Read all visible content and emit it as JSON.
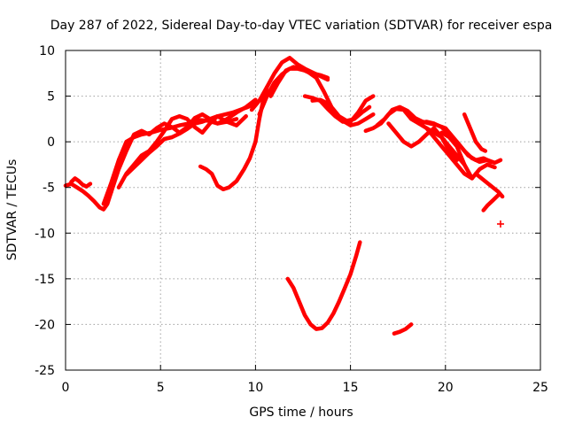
{
  "chart_data": {
    "type": "scatter",
    "title": "Day 287 of 2022, Sidereal Day-to-day VTEC variation (SDTVAR) for receiver espa",
    "xlabel": "GPS time / hours",
    "ylabel": "SDTVAR / TECUs",
    "xlim": [
      0,
      25
    ],
    "ylim": [
      -25,
      10
    ],
    "xticks": [
      0,
      5,
      10,
      15,
      20,
      25
    ],
    "yticks": [
      -25,
      -20,
      -15,
      -10,
      -5,
      0,
      5,
      10
    ],
    "xtick_labels": [
      "0",
      "5",
      "10",
      "15",
      "20",
      "25"
    ],
    "ytick_labels": [
      "-25",
      "-20",
      "-15",
      "-10",
      "-5",
      "0",
      "5",
      "10"
    ],
    "grid": true,
    "color": "#ff0000",
    "series": [
      {
        "name": "arc-early-low",
        "x": [
          0.0,
          0.3,
          0.6,
          0.9,
          1.2,
          1.5,
          1.8,
          2.0,
          2.2,
          2.4
        ],
        "y": [
          -4.8,
          -4.6,
          -5.0,
          -5.4,
          -5.9,
          -6.5,
          -7.2,
          -7.4,
          -6.8,
          -5.5
        ]
      },
      {
        "name": "arc-early-bump",
        "x": [
          0.3,
          0.5,
          0.7,
          0.9,
          1.1,
          1.3
        ],
        "y": [
          -4.4,
          -4.0,
          -4.3,
          -4.7,
          -4.9,
          -4.6
        ]
      },
      {
        "name": "arc-rise-a",
        "x": [
          2.0,
          2.4,
          2.8,
          3.2,
          3.6,
          4.0,
          4.5,
          5.0,
          5.5,
          6.0,
          6.5,
          7.0,
          7.5,
          8.0,
          8.5,
          9.0
        ],
        "y": [
          -6.8,
          -4.5,
          -2.0,
          0.0,
          0.5,
          0.8,
          1.0,
          1.3,
          1.5,
          1.8,
          2.0,
          2.4,
          2.3,
          2.0,
          2.2,
          2.5
        ]
      },
      {
        "name": "arc-rise-b",
        "x": [
          2.4,
          2.8,
          3.2,
          3.6,
          4.0,
          4.4,
          4.8,
          5.2,
          5.6,
          6.0,
          6.4,
          6.8,
          7.2,
          7.6,
          8.0,
          8.5,
          9.0,
          9.5,
          10.0
        ],
        "y": [
          -5.5,
          -3.0,
          -1.0,
          0.8,
          1.2,
          0.8,
          1.5,
          2.0,
          1.6,
          1.0,
          1.6,
          2.6,
          3.0,
          2.5,
          2.0,
          2.5,
          3.2,
          3.8,
          4.6
        ]
      },
      {
        "name": "arc-rise-c",
        "x": [
          2.8,
          3.2,
          3.6,
          4.0,
          4.4,
          4.8,
          5.2,
          5.6,
          6.0,
          6.4,
          6.8,
          7.2,
          7.6,
          8.0,
          8.5,
          9.0,
          9.5
        ],
        "y": [
          -5.0,
          -3.5,
          -2.5,
          -1.5,
          -1.0,
          0.0,
          1.2,
          2.5,
          2.8,
          2.5,
          1.6,
          1.0,
          2.0,
          2.8,
          2.2,
          1.8,
          2.8
        ]
      },
      {
        "name": "arc-rise-d",
        "x": [
          3.2,
          3.6,
          4.0,
          4.4,
          4.8,
          5.2,
          5.6,
          6.0,
          6.4,
          6.8,
          7.2,
          7.6,
          8.0,
          8.4,
          8.8,
          9.2,
          9.6,
          10.0
        ],
        "y": [
          -3.6,
          -2.8,
          -2.0,
          -1.2,
          -0.5,
          0.3,
          0.5,
          0.9,
          1.4,
          2.0,
          2.2,
          2.5,
          2.8,
          3.0,
          3.2,
          3.5,
          3.8,
          4.2
        ]
      },
      {
        "name": "arc-dip-mid",
        "x": [
          7.1,
          7.4,
          7.7,
          8.0,
          8.3,
          8.6,
          9.0,
          9.4,
          9.7,
          10.0,
          10.2,
          10.4,
          10.6
        ],
        "y": [
          -2.7,
          -3.0,
          -3.5,
          -4.8,
          -5.2,
          -5.0,
          -4.3,
          -3.0,
          -1.8,
          0.0,
          2.5,
          4.5,
          6.0
        ]
      },
      {
        "name": "arc-peak-a",
        "x": [
          9.8,
          10.2,
          10.6,
          11.0,
          11.4,
          11.8,
          12.2,
          12.6,
          13.0,
          13.4,
          13.8
        ],
        "y": [
          3.5,
          4.5,
          6.0,
          7.5,
          8.7,
          9.2,
          8.5,
          8.0,
          7.6,
          7.2,
          6.8
        ]
      },
      {
        "name": "arc-peak-b",
        "x": [
          10.2,
          10.6,
          11.0,
          11.4,
          11.8,
          12.2,
          12.6,
          13.0,
          13.4,
          13.8
        ],
        "y": [
          3.0,
          5.0,
          6.5,
          7.4,
          8.0,
          8.0,
          7.8,
          7.5,
          7.3,
          7.0
        ]
      },
      {
        "name": "arc-peak-c",
        "x": [
          10.8,
          11.2,
          11.6,
          12.0,
          12.4,
          12.8,
          13.2,
          13.6,
          14.0,
          14.4,
          14.8,
          15.2,
          15.6,
          16.0
        ],
        "y": [
          5.0,
          6.5,
          7.8,
          8.2,
          8.0,
          7.6,
          7.0,
          5.5,
          3.8,
          2.8,
          2.3,
          2.5,
          3.2,
          3.8
        ]
      },
      {
        "name": "arc-post-peak",
        "x": [
          12.6,
          13.0,
          13.4,
          13.8,
          14.2,
          14.6,
          15.0,
          15.4,
          15.8,
          16.2
        ],
        "y": [
          5.0,
          4.8,
          4.5,
          3.6,
          2.8,
          2.2,
          2.2,
          3.2,
          4.5,
          5.0
        ]
      },
      {
        "name": "arc-post-peak-b",
        "x": [
          13.0,
          13.4,
          13.8,
          14.2,
          14.6,
          15.0,
          15.4,
          15.8,
          16.2
        ],
        "y": [
          4.5,
          4.6,
          4.2,
          3.2,
          2.3,
          1.8,
          2.0,
          2.5,
          3.0
        ]
      },
      {
        "name": "arc-late-a",
        "x": [
          15.8,
          16.2,
          16.6,
          17.0,
          17.4,
          17.8,
          18.2,
          18.6,
          19.0,
          19.4,
          19.8,
          20.2,
          20.6,
          21.0
        ],
        "y": [
          1.2,
          1.5,
          2.0,
          3.0,
          3.6,
          3.5,
          2.5,
          2.0,
          1.5,
          1.0,
          0.5,
          -0.5,
          -1.5,
          -2.5
        ]
      },
      {
        "name": "arc-late-b",
        "x": [
          16.4,
          16.8,
          17.2,
          17.6,
          18.0,
          18.4,
          18.8,
          19.2,
          19.6,
          20.0,
          20.4,
          20.8,
          21.2,
          21.6,
          22.0,
          22.4
        ],
        "y": [
          1.8,
          2.5,
          3.5,
          3.8,
          3.4,
          2.6,
          2.2,
          2.0,
          1.8,
          1.5,
          0.5,
          -0.5,
          -1.5,
          -2.0,
          -1.8,
          -2.2
        ]
      },
      {
        "name": "arc-late-c",
        "x": [
          17.0,
          17.4,
          17.8,
          18.2,
          18.6,
          19.0,
          19.4,
          19.8,
          20.2,
          20.6
        ],
        "y": [
          2.0,
          1.0,
          0.0,
          -0.5,
          0.0,
          0.8,
          1.5,
          0.5,
          -1.0,
          -2.0
        ]
      },
      {
        "name": "arc-late-d",
        "x": [
          18.6,
          19.0,
          19.4,
          19.8,
          20.2,
          20.6,
          21.0,
          21.4,
          21.8,
          22.2,
          22.6,
          22.9
        ],
        "y": [
          2.0,
          2.2,
          2.0,
          1.6,
          0.8,
          0.0,
          -1.0,
          -1.8,
          -2.2,
          -2.0,
          -2.3,
          -2.0
        ]
      },
      {
        "name": "arc-late-e",
        "x": [
          19.8,
          20.2,
          20.6,
          21.0,
          21.4,
          21.8,
          22.2,
          22.6
        ],
        "y": [
          1.0,
          0.5,
          -0.5,
          -2.5,
          -4.0,
          -3.0,
          -2.5,
          -2.8
        ]
      },
      {
        "name": "arc-late-f",
        "x": [
          19.0,
          19.4,
          19.8,
          20.2,
          20.6,
          21.0,
          21.4
        ],
        "y": [
          1.5,
          0.5,
          -0.5,
          -1.5,
          -2.5,
          -3.5,
          -4.0
        ]
      },
      {
        "name": "arc-end-drop",
        "x": [
          21.6,
          21.9,
          22.2,
          22.5,
          22.8,
          23.0
        ],
        "y": [
          -3.5,
          -4.0,
          -4.5,
          -5.0,
          -5.5,
          -6.0
        ]
      },
      {
        "name": "arc-end-tail",
        "x": [
          22.8,
          22.5,
          22.2,
          22.0
        ],
        "y": [
          -5.8,
          -6.4,
          -7.0,
          -7.5
        ]
      },
      {
        "name": "arc-late-steep",
        "x": [
          21.0,
          21.3,
          21.6,
          21.9,
          22.1
        ],
        "y": [
          3.0,
          1.5,
          0.0,
          -0.8,
          -1.0
        ]
      },
      {
        "name": "arc-deep-u",
        "x": [
          11.7,
          12.0,
          12.3,
          12.6,
          12.9,
          13.2,
          13.5,
          13.8,
          14.1,
          14.4,
          14.7,
          15.0,
          15.3,
          15.5
        ],
        "y": [
          -15.0,
          -16.0,
          -17.5,
          -19.0,
          -20.0,
          -20.5,
          -20.4,
          -19.8,
          -18.8,
          -17.5,
          -16.0,
          -14.5,
          -12.5,
          -11.0
        ]
      },
      {
        "name": "arc-deep-small",
        "x": [
          17.3,
          17.6,
          17.9,
          18.2
        ],
        "y": [
          -21.0,
          -20.8,
          -20.5,
          -20.0
        ]
      },
      {
        "name": "point-isolated",
        "x": [
          22.9
        ],
        "y": [
          -9.0
        ]
      }
    ]
  }
}
